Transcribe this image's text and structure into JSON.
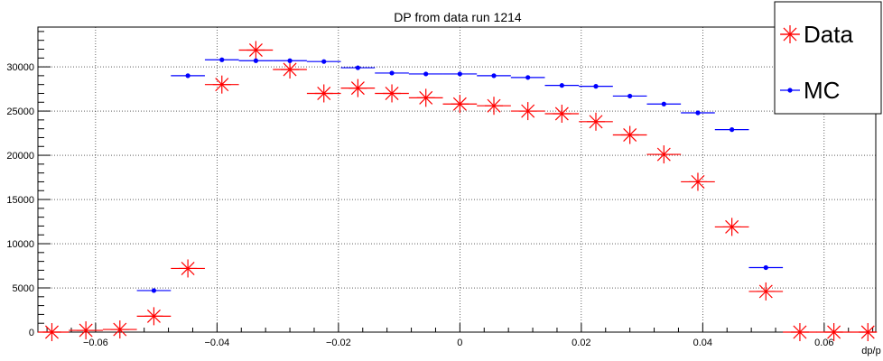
{
  "chart_data": {
    "type": "scatter",
    "title": "DP from data run 1214",
    "xlabel": "dp/p",
    "ylabel": "",
    "xlim": [
      -0.0695,
      0.0685
    ],
    "ylim": [
      0,
      34500
    ],
    "x_ticks": [
      -0.06,
      -0.04,
      -0.02,
      0,
      0.02,
      0.04,
      0.06
    ],
    "x_tick_labels": [
      "−0.06",
      "−0.04",
      "−0.02",
      "0",
      "0.02",
      "0.04",
      "0.06"
    ],
    "y_ticks": [
      0,
      5000,
      10000,
      15000,
      20000,
      25000,
      30000
    ],
    "y_tick_labels": [
      "0",
      "5000",
      "10000",
      "15000",
      "20000",
      "25000",
      "30000"
    ],
    "grid": true,
    "legend_position": "top-right",
    "bin_width": 0.0056,
    "series": [
      {
        "name": "Data",
        "color": "#ff0000",
        "marker": "star",
        "points": [
          {
            "x": -0.0672,
            "y": 0
          },
          {
            "x": -0.0616,
            "y": 200
          },
          {
            "x": -0.056,
            "y": 300
          },
          {
            "x": -0.0504,
            "y": 1800
          },
          {
            "x": -0.0448,
            "y": 7200
          },
          {
            "x": -0.0392,
            "y": 28000
          },
          {
            "x": -0.0336,
            "y": 31900
          },
          {
            "x": -0.028,
            "y": 29700
          },
          {
            "x": -0.0224,
            "y": 27000
          },
          {
            "x": -0.0168,
            "y": 27600
          },
          {
            "x": -0.0112,
            "y": 27000
          },
          {
            "x": -0.0056,
            "y": 26500
          },
          {
            "x": 0.0,
            "y": 25800
          },
          {
            "x": 0.0056,
            "y": 25600
          },
          {
            "x": 0.0112,
            "y": 25000
          },
          {
            "x": 0.0168,
            "y": 24700
          },
          {
            "x": 0.0224,
            "y": 23800
          },
          {
            "x": 0.028,
            "y": 22300
          },
          {
            "x": 0.0336,
            "y": 20100
          },
          {
            "x": 0.0392,
            "y": 17000
          },
          {
            "x": 0.0448,
            "y": 11900
          },
          {
            "x": 0.0504,
            "y": 4600
          },
          {
            "x": 0.056,
            "y": 0
          },
          {
            "x": 0.0616,
            "y": 0
          },
          {
            "x": 0.0672,
            "y": 0
          }
        ]
      },
      {
        "name": "MC",
        "color": "#0000ff",
        "marker": "dot",
        "points": [
          {
            "x": -0.0504,
            "y": 4700
          },
          {
            "x": -0.0448,
            "y": 29000
          },
          {
            "x": -0.0392,
            "y": 30800
          },
          {
            "x": -0.0336,
            "y": 30700
          },
          {
            "x": -0.028,
            "y": 30700
          },
          {
            "x": -0.0224,
            "y": 30600
          },
          {
            "x": -0.0168,
            "y": 29900
          },
          {
            "x": -0.0112,
            "y": 29300
          },
          {
            "x": -0.0056,
            "y": 29200
          },
          {
            "x": 0.0,
            "y": 29200
          },
          {
            "x": 0.0056,
            "y": 29000
          },
          {
            "x": 0.0112,
            "y": 28800
          },
          {
            "x": 0.0168,
            "y": 27900
          },
          {
            "x": 0.0224,
            "y": 27800
          },
          {
            "x": 0.028,
            "y": 26700
          },
          {
            "x": 0.0336,
            "y": 25800
          },
          {
            "x": 0.0392,
            "y": 24800
          },
          {
            "x": 0.0448,
            "y": 22900
          },
          {
            "x": 0.0504,
            "y": 7300
          }
        ]
      }
    ]
  }
}
